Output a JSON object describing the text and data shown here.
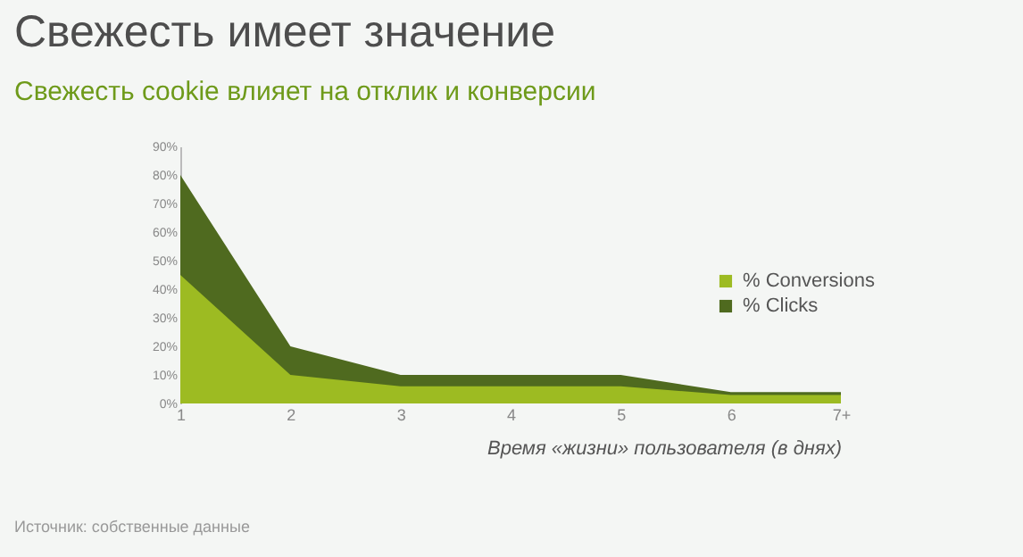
{
  "chart_data": {
    "type": "area",
    "title": "Свежесть имеет значение",
    "subtitle": "Свежесть cookie влияет на отклик и конверсии",
    "xlabel": "Время «жизни» пользователя (в днях)",
    "categories": [
      "1",
      "2",
      "3",
      "4",
      "5",
      "6",
      "7+"
    ],
    "series": [
      {
        "name": "% Clicks",
        "color": "#4f6a1f",
        "values": [
          80,
          20,
          10,
          10,
          10,
          4,
          4
        ]
      },
      {
        "name": "% Conversions",
        "color": "#9dbb22",
        "values": [
          45,
          10,
          6,
          6,
          6,
          3,
          3
        ]
      }
    ],
    "ylim": [
      0,
      90
    ],
    "yticks": [
      {
        "value": 0,
        "label": "0%"
      },
      {
        "value": 10,
        "label": "10%"
      },
      {
        "value": 20,
        "label": "20%"
      },
      {
        "value": 30,
        "label": "30%"
      },
      {
        "value": 40,
        "label": "40%"
      },
      {
        "value": 50,
        "label": "50%"
      },
      {
        "value": 60,
        "label": "60%"
      },
      {
        "value": 70,
        "label": "70%"
      },
      {
        "value": 80,
        "label": "80%"
      },
      {
        "value": 90,
        "label": "90%"
      }
    ],
    "legend": "right",
    "annotations": [
      "Источник: собственные данные"
    ]
  }
}
